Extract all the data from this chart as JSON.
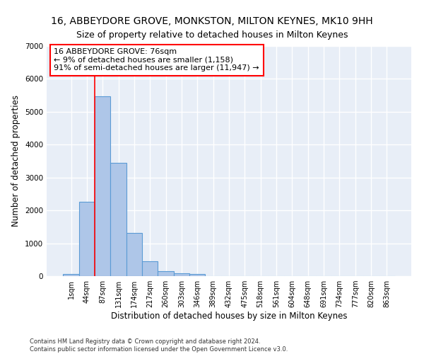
{
  "title": "16, ABBEYDORE GROVE, MONKSTON, MILTON KEYNES, MK10 9HH",
  "subtitle": "Size of property relative to detached houses in Milton Keynes",
  "xlabel": "Distribution of detached houses by size in Milton Keynes",
  "ylabel": "Number of detached properties",
  "footer_line1": "Contains HM Land Registry data © Crown copyright and database right 2024.",
  "footer_line2": "Contains public sector information licensed under the Open Government Licence v3.0.",
  "bar_labels": [
    "1sqm",
    "44sqm",
    "87sqm",
    "131sqm",
    "174sqm",
    "217sqm",
    "260sqm",
    "303sqm",
    "346sqm",
    "389sqm",
    "432sqm",
    "475sqm",
    "518sqm",
    "561sqm",
    "604sqm",
    "648sqm",
    "691sqm",
    "734sqm",
    "777sqm",
    "820sqm",
    "863sqm"
  ],
  "bar_values": [
    75,
    2270,
    5480,
    3450,
    1320,
    460,
    155,
    90,
    55,
    0,
    0,
    0,
    0,
    0,
    0,
    0,
    0,
    0,
    0,
    0,
    0
  ],
  "bar_color": "#aec6e8",
  "bar_edge_color": "#5b9bd5",
  "background_color": "#e8eef7",
  "grid_color": "#ffffff",
  "ylim": [
    0,
    7000
  ],
  "yticks": [
    0,
    1000,
    2000,
    3000,
    4000,
    5000,
    6000,
    7000
  ],
  "property_label": "16 ABBEYDORE GROVE: 76sqm",
  "annotation_line1": "← 9% of detached houses are smaller (1,158)",
  "annotation_line2": "91% of semi-detached houses are larger (11,947) →",
  "title_fontsize": 10,
  "subtitle_fontsize": 9,
  "tick_fontsize": 7,
  "ylabel_fontsize": 8.5,
  "xlabel_fontsize": 8.5,
  "annotation_fontsize": 8,
  "footer_fontsize": 6
}
